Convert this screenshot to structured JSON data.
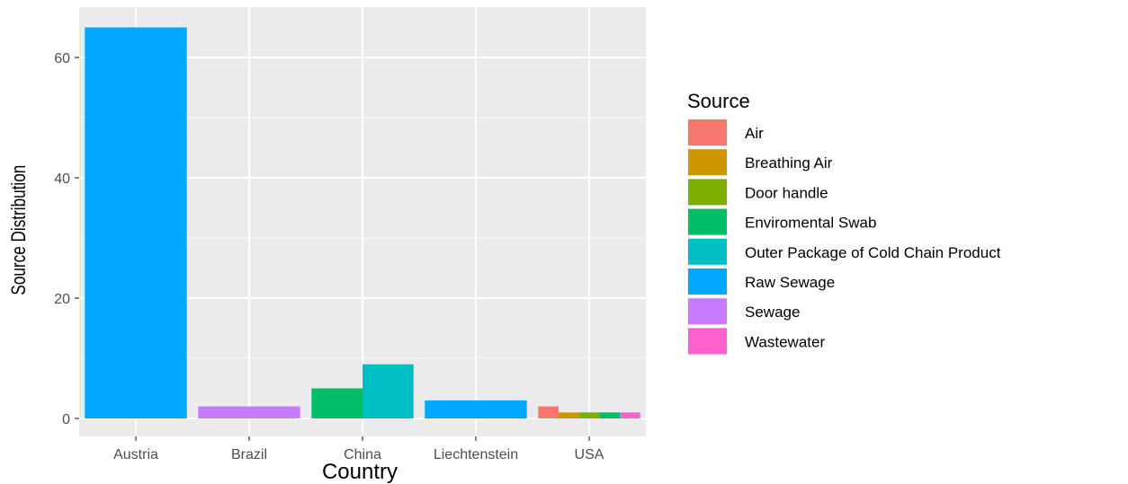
{
  "chart_data": {
    "type": "bar",
    "xlabel": "Country",
    "ylabel": "Source Distribution",
    "ylim": [
      0,
      70
    ],
    "yticks": [
      0,
      20,
      40,
      60
    ],
    "categories": [
      "Austria",
      "Brazil",
      "China",
      "Liechtenstein",
      "USA"
    ],
    "grid": true,
    "bar_mode": "dodge",
    "legend": {
      "title": "Source",
      "position": "right",
      "entries": [
        {
          "name": "Air",
          "color": "#F8766D"
        },
        {
          "name": "Breathing Air",
          "color": "#CD9600"
        },
        {
          "name": "Door handle",
          "color": "#7CAE00"
        },
        {
          "name": "Enviromental Swab",
          "color": "#00BE67"
        },
        {
          "name": "Outer Package of Cold Chain Product",
          "color": "#00BFC4"
        },
        {
          "name": "Raw Sewage",
          "color": "#00A9FF"
        },
        {
          "name": "Sewage",
          "color": "#C77CFF"
        },
        {
          "name": "Wastewater",
          "color": "#FF61CC"
        }
      ]
    },
    "bars": [
      {
        "category": "Austria",
        "segments": [
          {
            "source": "Raw Sewage",
            "value": 65
          }
        ]
      },
      {
        "category": "Brazil",
        "segments": [
          {
            "source": "Sewage",
            "value": 2
          }
        ]
      },
      {
        "category": "China",
        "segments": [
          {
            "source": "Enviromental Swab",
            "value": 5
          },
          {
            "source": "Outer Package of Cold Chain Product",
            "value": 9
          }
        ]
      },
      {
        "category": "Liechtenstein",
        "segments": [
          {
            "source": "Raw Sewage",
            "value": 3
          }
        ]
      },
      {
        "category": "USA",
        "segments": [
          {
            "source": "Air",
            "value": 2
          },
          {
            "source": "Breathing Air",
            "value": 1
          },
          {
            "source": "Door handle",
            "value": 1
          },
          {
            "source": "Enviromental Swab",
            "value": 1
          },
          {
            "source": "Wastewater",
            "value": 1
          }
        ]
      }
    ]
  }
}
